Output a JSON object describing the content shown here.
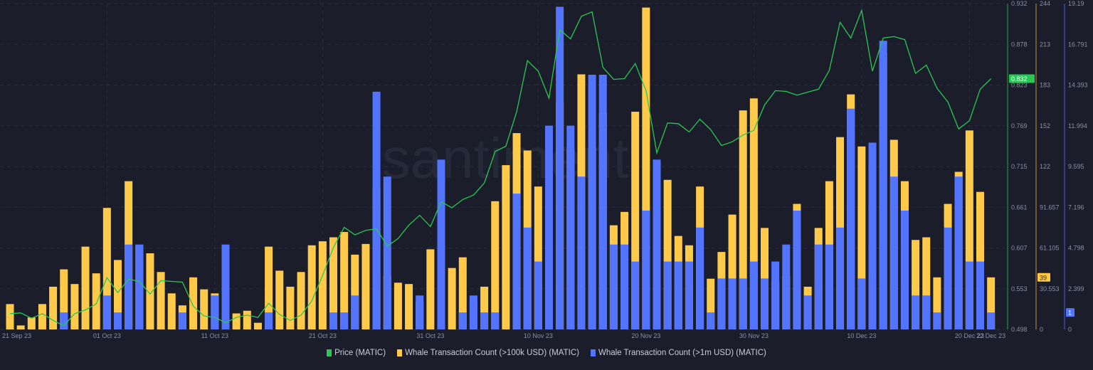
{
  "chart_data": {
    "type": "bar+line",
    "watermark": "santiment",
    "start_date": "22 Sep 23",
    "end_date": "22 Dec 23",
    "x_tick_labels": [
      {
        "label": "21 Sep 23",
        "index": -1
      },
      {
        "label": "01 Oct 23",
        "index": 9
      },
      {
        "label": "11 Oct 23",
        "index": 19
      },
      {
        "label": "21 Oct 23",
        "index": 29
      },
      {
        "label": "31 Oct 23",
        "index": 39
      },
      {
        "label": "10 Nov 23",
        "index": 49
      },
      {
        "label": "20 Nov 23",
        "index": 59
      },
      {
        "label": "30 Nov 23",
        "index": 69
      },
      {
        "label": "10 Dec 23",
        "index": 79
      },
      {
        "label": "20 Dec 23",
        "index": 89
      },
      {
        "label": "22 Dec 23",
        "index": 91
      }
    ],
    "axes": {
      "price": {
        "range": [
          0.498,
          0.932
        ],
        "ticks": [
          "0.498",
          "0.553",
          "0.607",
          "0.661",
          "0.715",
          "0.769",
          "0.823",
          "0.878",
          "0.932"
        ],
        "color": "#26c953",
        "line_color": "#1f7a3a",
        "current_label": "0.832"
      },
      "whale_100k": {
        "range": [
          0,
          244
        ],
        "ticks": [
          "0",
          "30.553",
          "61.105",
          "91.657",
          "122",
          "152",
          "183",
          "213",
          "244"
        ],
        "color": "#ffc94a",
        "line_color": "#8a6a2e",
        "current_label": "39"
      },
      "whale_1m": {
        "range": [
          0,
          19.19
        ],
        "ticks": [
          "0",
          "2.399",
          "4.798",
          "7.196",
          "9.595",
          "11.994",
          "14.393",
          "16.791",
          "19.19"
        ],
        "color": "#5274ff",
        "line_color": "#3a4aa0",
        "current_label": "1"
      }
    },
    "series": [
      {
        "name": "Price (MATIC)",
        "type": "line",
        "axis": "price",
        "color": "#26c953",
        "values": [
          0.519,
          0.52,
          0.513,
          0.519,
          0.51,
          0.503,
          0.519,
          0.524,
          0.532,
          0.567,
          0.547,
          0.565,
          0.562,
          0.545,
          0.563,
          0.562,
          0.561,
          0.529,
          0.516,
          0.514,
          0.507,
          0.514,
          0.517,
          0.514,
          0.533,
          0.518,
          0.51,
          0.517,
          0.536,
          0.57,
          0.607,
          0.634,
          0.624,
          0.63,
          0.632,
          0.609,
          0.619,
          0.637,
          0.65,
          0.635,
          0.668,
          0.66,
          0.671,
          0.677,
          0.693,
          0.735,
          0.742,
          0.788,
          0.856,
          0.842,
          0.806,
          0.897,
          0.885,
          0.915,
          0.921,
          0.847,
          0.831,
          0.832,
          0.852,
          0.816,
          0.733,
          0.773,
          0.772,
          0.761,
          0.778,
          0.764,
          0.743,
          0.748,
          0.757,
          0.763,
          0.797,
          0.816,
          0.815,
          0.81,
          0.814,
          0.818,
          0.843,
          0.907,
          0.886,
          0.923,
          0.842,
          0.886,
          0.888,
          0.884,
          0.839,
          0.85,
          0.819,
          0.801,
          0.765,
          0.776,
          0.818,
          0.832
        ]
      },
      {
        "name": "Whale Transaction Count (>100k USD) (MATIC)",
        "type": "bar",
        "axis": "whale_100k",
        "color": "#ffc94a",
        "values": [
          19,
          3,
          9,
          19,
          32,
          45,
          34,
          62,
          42,
          91,
          52,
          111,
          63,
          57,
          43,
          27,
          18,
          39,
          30,
          27,
          46,
          12,
          14,
          5,
          62,
          44,
          32,
          43,
          63,
          66,
          69,
          73,
          56,
          64,
          106,
          40,
          35,
          34,
          21,
          60,
          100,
          46,
          54,
          21,
          32,
          96,
          123,
          147,
          134,
          107,
          139,
          170,
          135,
          191,
          136,
          162,
          78,
          88,
          163,
          241,
          25,
          112,
          70,
          63,
          107,
          38,
          58,
          86,
          164,
          173,
          76,
          36,
          40,
          94,
          32,
          76,
          111,
          144,
          176,
          137,
          124,
          207,
          142,
          111,
          67,
          69,
          39,
          94,
          118,
          149,
          103,
          39
        ]
      },
      {
        "name": "Whale Transaction Count (>1m USD) (MATIC)",
        "type": "bar",
        "axis": "whale_1m",
        "color": "#5274ff",
        "values": [
          0,
          0,
          0,
          0,
          0,
          1,
          0,
          0,
          0,
          2,
          1,
          5,
          5,
          0,
          0,
          0,
          1,
          0,
          0,
          2,
          5,
          0,
          0,
          0,
          1,
          0,
          0,
          0,
          0,
          0,
          1,
          1,
          2,
          0,
          14,
          9,
          0,
          0,
          2,
          0,
          10,
          0,
          1,
          2,
          1,
          1,
          0,
          8,
          6,
          4,
          12,
          19,
          12,
          9,
          15,
          15,
          5,
          5,
          4,
          7,
          10,
          4,
          4,
          4,
          6,
          1,
          3,
          3,
          3,
          4,
          3,
          4,
          5,
          7,
          2,
          5,
          5,
          6,
          13,
          3,
          11,
          17,
          9,
          7,
          2,
          2,
          1,
          6,
          9,
          4,
          4,
          1
        ]
      }
    ]
  },
  "legend": [
    {
      "label": "Price (MATIC)",
      "color": "#26c953"
    },
    {
      "label": "Whale Transaction Count (>100k USD) (MATIC)",
      "color": "#ffc94a"
    },
    {
      "label": "Whale Transaction Count (>1m USD) (MATIC)",
      "color": "#5274ff"
    }
  ]
}
